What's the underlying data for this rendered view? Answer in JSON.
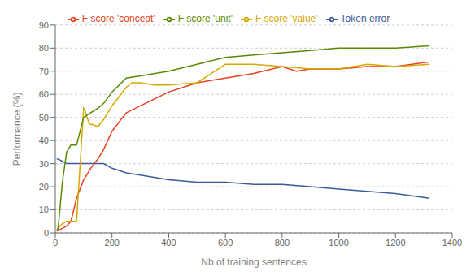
{
  "chart_data": {
    "type": "line",
    "title": "",
    "xlabel": "Nb of training sentences",
    "ylabel": "Performance (%)",
    "xlim": [
      0,
      1400
    ],
    "ylim": [
      0,
      90
    ],
    "xticks": [
      0,
      200,
      400,
      600,
      800,
      1000,
      1200,
      1400
    ],
    "yticks": [
      0,
      10,
      20,
      30,
      40,
      50,
      60,
      70,
      80,
      90
    ],
    "grid": true,
    "legend": "top",
    "series": [
      {
        "name": "Token error",
        "color": "#3c5a9a",
        "x": [
          5,
          10,
          25,
          40,
          55,
          75,
          100,
          125,
          150,
          170,
          200,
          250,
          300,
          400,
          500,
          600,
          700,
          800,
          900,
          1000,
          1100,
          1200,
          1320
        ],
        "values": [
          32,
          32,
          31,
          30,
          30,
          30,
          30,
          30,
          30,
          30,
          28,
          26,
          25,
          23,
          22,
          22,
          21,
          21,
          20,
          19,
          18,
          17,
          15
        ]
      },
      {
        "name": "F score 'concept'",
        "color": "#e8401c",
        "x": [
          5,
          10,
          25,
          40,
          55,
          75,
          100,
          125,
          150,
          170,
          200,
          250,
          300,
          350,
          400,
          500,
          600,
          700,
          800,
          850,
          900,
          1000,
          1100,
          1200,
          1320
        ],
        "values": [
          1,
          1,
          2,
          3,
          5,
          15,
          23,
          28,
          32,
          36,
          44,
          52,
          55,
          58,
          61,
          65,
          67,
          69,
          72,
          70,
          71,
          71,
          72,
          72,
          74
        ]
      },
      {
        "name": "F score 'value'",
        "color": "#d4a800",
        "x": [
          5,
          10,
          25,
          40,
          55,
          75,
          100,
          105,
          120,
          130,
          150,
          170,
          200,
          250,
          270,
          300,
          350,
          400,
          500,
          600,
          700,
          800,
          900,
          1000,
          1100,
          1200,
          1320
        ],
        "values": [
          1,
          2,
          4,
          5,
          5,
          5,
          54,
          53,
          47,
          47,
          46,
          49,
          55,
          63,
          65,
          65,
          64,
          64,
          65,
          73,
          73,
          72,
          71,
          71,
          73,
          72,
          73
        ]
      },
      {
        "name": "F score 'unit'",
        "color": "#5a8a00",
        "x": [
          5,
          10,
          25,
          40,
          55,
          75,
          100,
          125,
          150,
          170,
          200,
          250,
          300,
          400,
          500,
          600,
          700,
          800,
          900,
          1000,
          1100,
          1200,
          1320
        ],
        "values": [
          1,
          2,
          22,
          35,
          38,
          38,
          50,
          52,
          54,
          56,
          61,
          67,
          68,
          70,
          73,
          76,
          77,
          78,
          79,
          80,
          80,
          80,
          81
        ]
      }
    ]
  }
}
